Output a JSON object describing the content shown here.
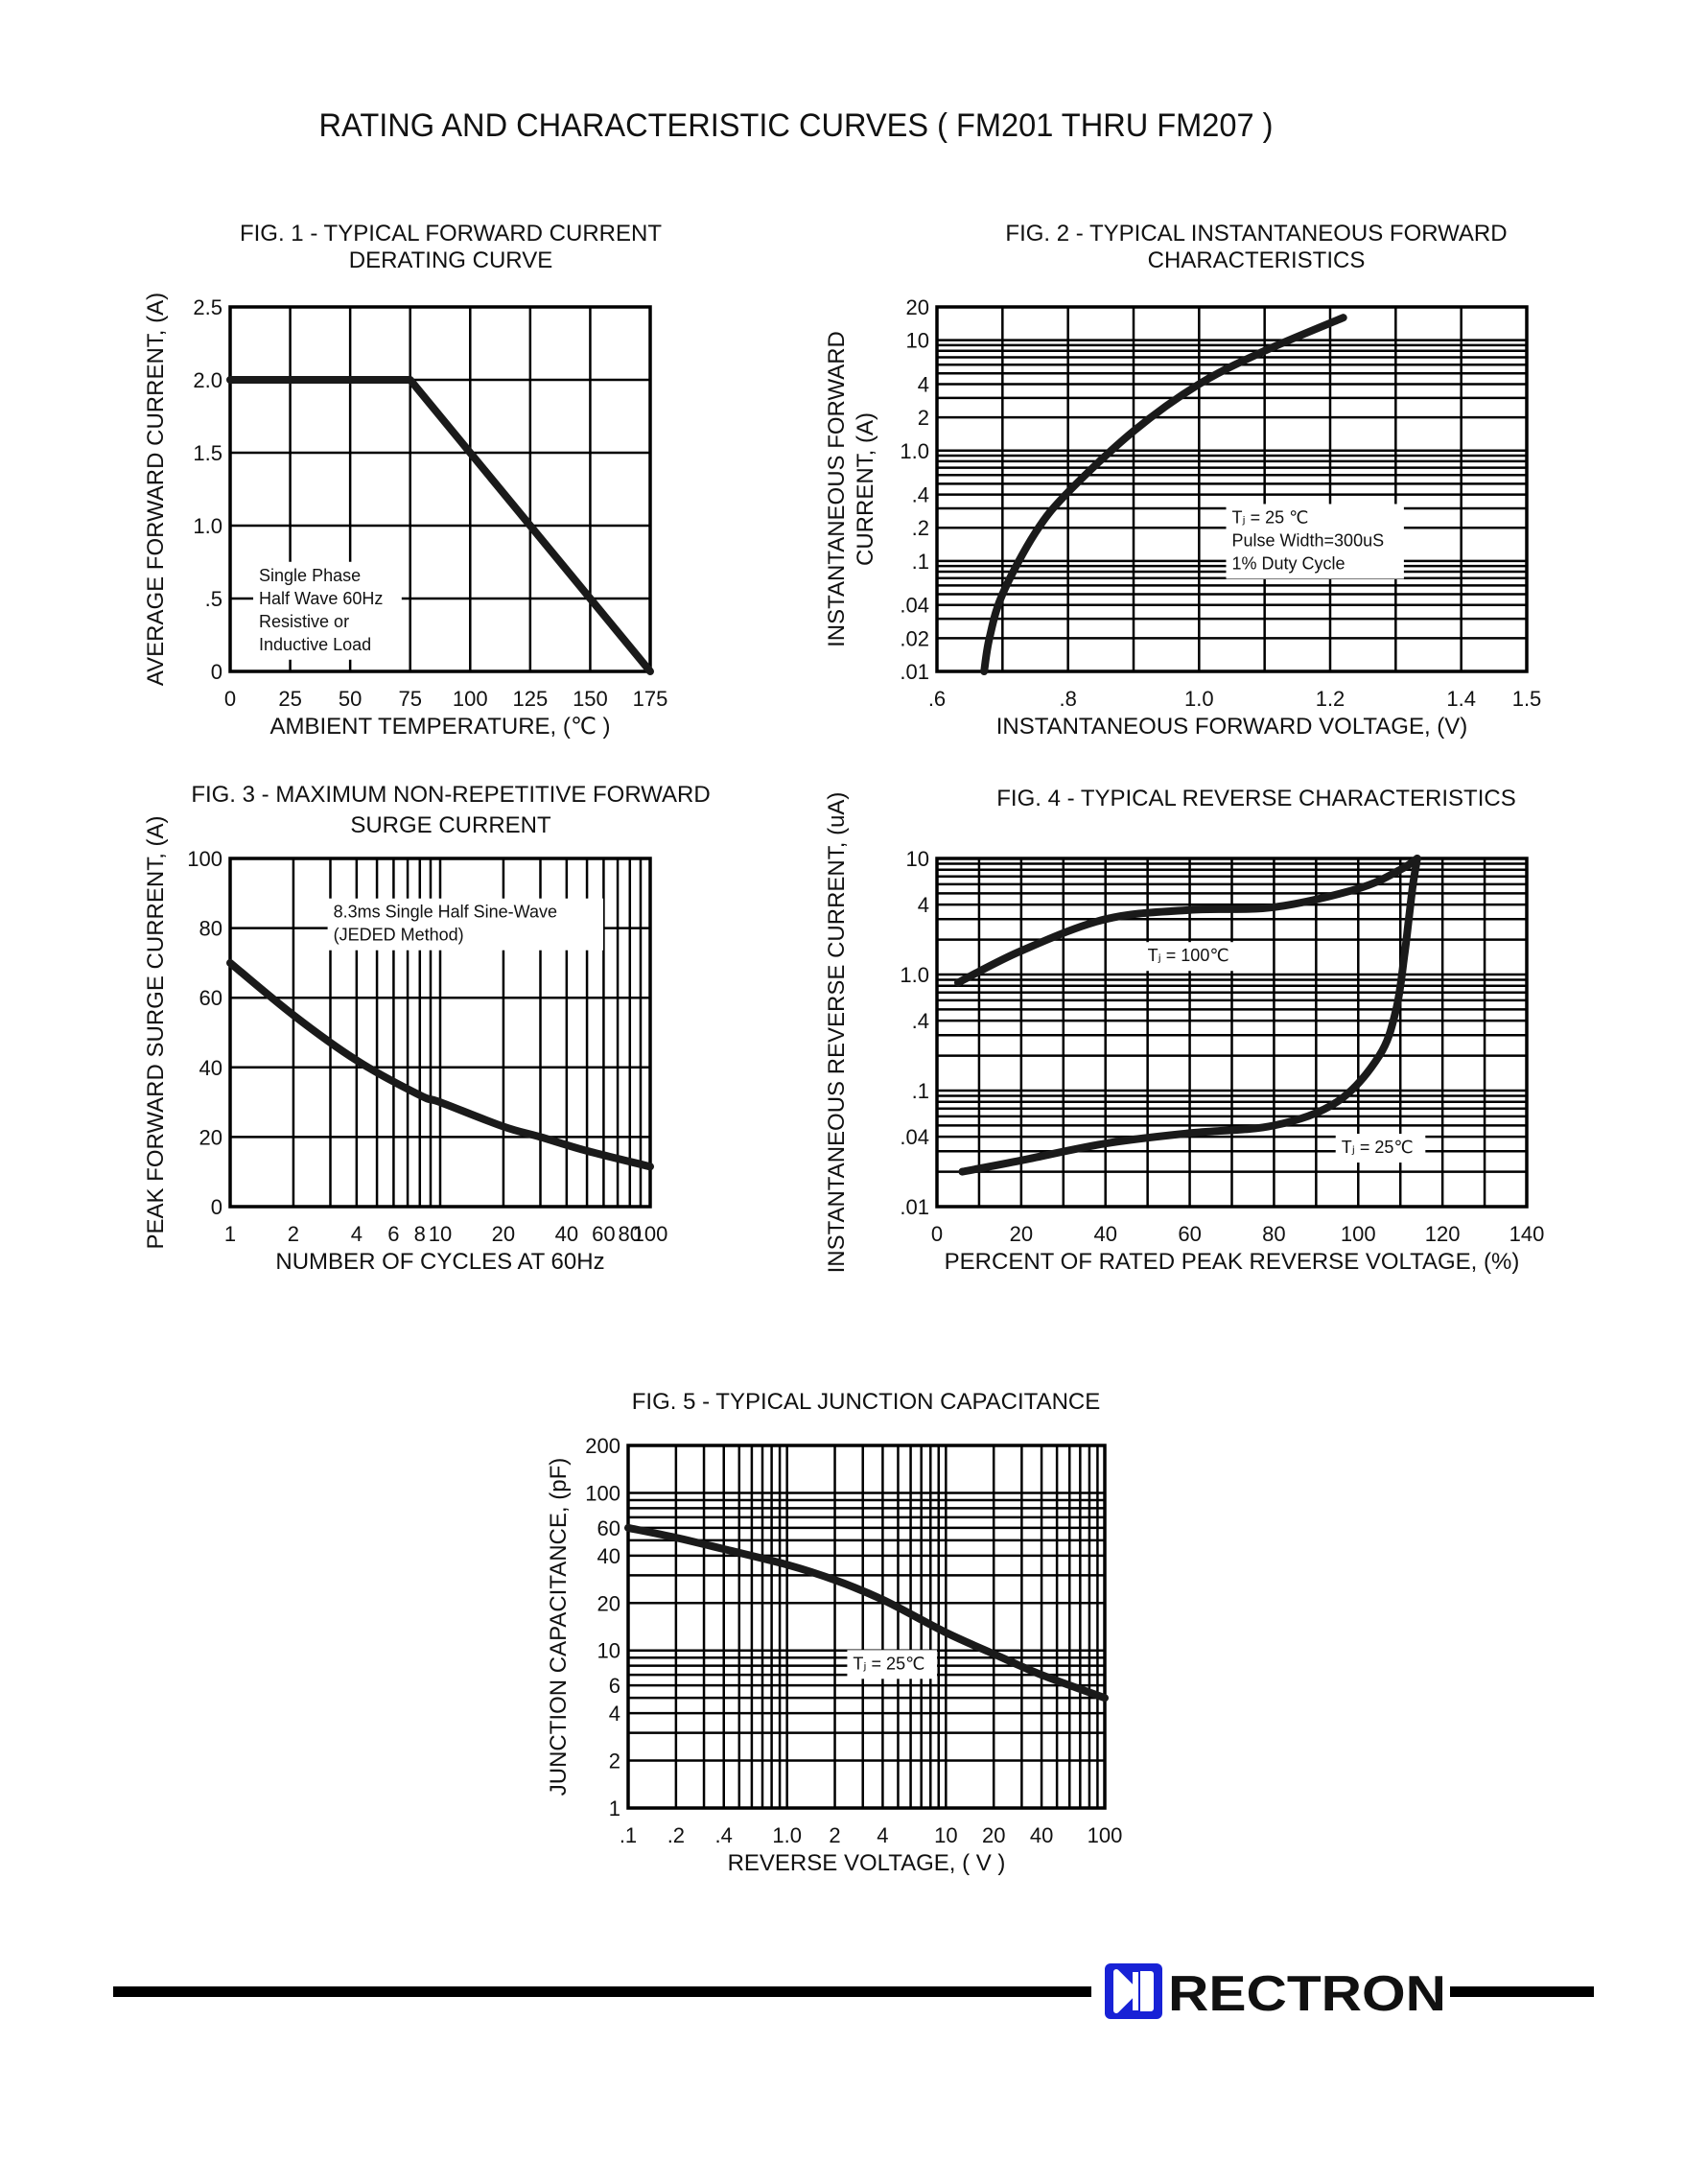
{
  "page_title": "RATING AND CHARACTERISTIC CURVES ( FM201 THRU FM207 )",
  "brand": {
    "name": "RECTRON",
    "color": "#1822d6"
  },
  "chart_data": [
    {
      "id": "fig1",
      "type": "line",
      "title_lines": [
        "FIG. 1 - TYPICAL FORWARD CURRENT",
        "DERATING CURVE"
      ],
      "xlabel": "AMBIENT TEMPERATURE, (℃ )",
      "ylabel": "AVERAGE FORWARD  CURRENT, (A)",
      "xscale": "linear",
      "yscale": "linear",
      "xlim": [
        0,
        175
      ],
      "ylim": [
        0,
        2.5
      ],
      "x_ticks": [
        {
          "v": 0,
          "label": "0"
        },
        {
          "v": 25,
          "label": "25"
        },
        {
          "v": 50,
          "label": "50"
        },
        {
          "v": 75,
          "label": "75"
        },
        {
          "v": 100,
          "label": "100"
        },
        {
          "v": 125,
          "label": "125"
        },
        {
          "v": 150,
          "label": "150"
        },
        {
          "v": 175,
          "label": "175"
        }
      ],
      "y_ticks": [
        {
          "v": 0,
          "label": "0"
        },
        {
          "v": 0.5,
          "label": ".5"
        },
        {
          "v": 1.0,
          "label": "1.0"
        },
        {
          "v": 1.5,
          "label": "1.5"
        },
        {
          "v": 2.0,
          "label": "2.0"
        },
        {
          "v": 2.5,
          "label": "2.5"
        }
      ],
      "grid_x": [
        25,
        50,
        75,
        100,
        125,
        150
      ],
      "grid_y": [
        0.5,
        1.0,
        1.5,
        2.0
      ],
      "series": [
        {
          "x": [
            0,
            75,
            175
          ],
          "y": [
            2.0,
            2.0,
            0
          ]
        }
      ],
      "annotations": [
        {
          "lines": [
            "Single Phase",
            "Half Wave 60Hz",
            "Resistive or",
            "Inductive Load"
          ],
          "x": 12,
          "y": 0.62
        }
      ]
    },
    {
      "id": "fig2",
      "type": "line",
      "title_lines": [
        "FIG. 2 - TYPICAL INSTANTANEOUS FORWARD",
        "CHARACTERISTICS"
      ],
      "xlabel": "INSTANTANEOUS FORWARD VOLTAGE, (V)",
      "ylabel_lines": [
        "INSTANTANEOUS FORWARD",
        "CURRENT, (A)"
      ],
      "xscale": "linear",
      "yscale": "log",
      "xlim": [
        0.6,
        1.5
      ],
      "ylim": [
        0.01,
        20
      ],
      "x_ticks": [
        {
          "v": 0.6,
          "label": ".6"
        },
        {
          "v": 0.8,
          "label": ".8"
        },
        {
          "v": 1.0,
          "label": "1.0"
        },
        {
          "v": 1.2,
          "label": "1.2"
        },
        {
          "v": 1.4,
          "label": "1.4"
        },
        {
          "v": 1.5,
          "label": "1.5"
        }
      ],
      "y_ticks": [
        {
          "v": 0.01,
          "label": ".01"
        },
        {
          "v": 0.02,
          "label": ".02"
        },
        {
          "v": 0.04,
          "label": ".04"
        },
        {
          "v": 0.1,
          "label": ".1"
        },
        {
          "v": 0.2,
          "label": ".2"
        },
        {
          "v": 0.4,
          "label": ".4"
        },
        {
          "v": 1.0,
          "label": "1.0"
        },
        {
          "v": 2,
          "label": "2"
        },
        {
          "v": 4,
          "label": "4"
        },
        {
          "v": 10,
          "label": "10"
        },
        {
          "v": 20,
          "label": "20"
        }
      ],
      "grid_x": [
        0.7,
        0.8,
        0.9,
        1.0,
        1.1,
        1.2,
        1.3,
        1.4
      ],
      "grid_y": [
        0.02,
        0.03,
        0.04,
        0.05,
        0.06,
        0.07,
        0.08,
        0.09,
        0.1,
        0.2,
        0.3,
        0.4,
        0.5,
        0.6,
        0.7,
        0.8,
        0.9,
        1,
        2,
        3,
        4,
        5,
        6,
        7,
        8,
        9,
        10
      ],
      "series": [
        {
          "x": [
            0.672,
            0.68,
            0.7,
            0.75,
            0.8,
            0.9,
            1.0,
            1.1,
            1.22
          ],
          "y": [
            0.01,
            0.02,
            0.05,
            0.18,
            0.42,
            1.5,
            4.0,
            8.0,
            16
          ]
        }
      ],
      "annotations": [
        {
          "lines": [
            "Tⱼ = 25 ℃",
            "Pulse Width=300uS",
            "1% Duty Cycle"
          ],
          "x": 1.05,
          "y": 0.22
        }
      ]
    },
    {
      "id": "fig3",
      "type": "line",
      "title_lines": [
        "FIG. 3 - MAXIMUM NON-REPETITIVE FORWARD",
        "SURGE CURRENT"
      ],
      "xlabel": "NUMBER OF CYCLES AT 60Hz",
      "ylabel": "PEAK FORWARD SURGE CURRENT, (A)",
      "xscale": "log",
      "yscale": "linear",
      "xlim": [
        1,
        100
      ],
      "ylim": [
        0,
        100
      ],
      "x_ticks": [
        {
          "v": 1,
          "label": "1"
        },
        {
          "v": 2,
          "label": "2"
        },
        {
          "v": 4,
          "label": "4"
        },
        {
          "v": 6,
          "label": "6"
        },
        {
          "v": 8,
          "label": "8"
        },
        {
          "v": 10,
          "label": "10"
        },
        {
          "v": 20,
          "label": "20"
        },
        {
          "v": 40,
          "label": "40"
        },
        {
          "v": 60,
          "label": "60"
        },
        {
          "v": 80,
          "label": "80"
        },
        {
          "v": 100,
          "label": "100"
        }
      ],
      "y_ticks": [
        {
          "v": 0,
          "label": "0"
        },
        {
          "v": 20,
          "label": "20"
        },
        {
          "v": 40,
          "label": "40"
        },
        {
          "v": 60,
          "label": "60"
        },
        {
          "v": 80,
          "label": "80"
        },
        {
          "v": 100,
          "label": "100"
        }
      ],
      "grid_x": [
        2,
        3,
        4,
        5,
        6,
        7,
        8,
        9,
        10,
        20,
        30,
        40,
        50,
        60,
        70,
        80,
        90
      ],
      "grid_y": [
        20,
        40,
        60,
        80
      ],
      "series": [
        {
          "x": [
            1,
            2,
            4,
            8,
            10,
            20,
            30,
            50,
            100
          ],
          "y": [
            70,
            55,
            42,
            32,
            30,
            23,
            20,
            16,
            11.5
          ]
        }
      ],
      "annotations": [
        {
          "lines": [
            "8.3ms Single Half Sine-Wave",
            "(JEDED Method)"
          ],
          "x": 3.1,
          "y": 83
        }
      ]
    },
    {
      "id": "fig4",
      "type": "line",
      "title_lines": [
        "FIG. 4 - TYPICAL REVERSE CHARACTERISTICS"
      ],
      "xlabel": "PERCENT OF RATED PEAK REVERSE VOLTAGE, (%)",
      "ylabel": "INSTANTANEOUS REVERSE CURRENT, (uA)",
      "xscale": "linear",
      "yscale": "log",
      "xlim": [
        0,
        140
      ],
      "ylim": [
        0.01,
        10
      ],
      "x_ticks": [
        {
          "v": 0,
          "label": "0"
        },
        {
          "v": 20,
          "label": "20"
        },
        {
          "v": 40,
          "label": "40"
        },
        {
          "v": 60,
          "label": "60"
        },
        {
          "v": 80,
          "label": "80"
        },
        {
          "v": 100,
          "label": "100"
        },
        {
          "v": 120,
          "label": "120"
        },
        {
          "v": 140,
          "label": "140"
        }
      ],
      "y_ticks": [
        {
          "v": 0.01,
          "label": ".01"
        },
        {
          "v": 0.04,
          "label": ".04"
        },
        {
          "v": 0.1,
          "label": ".1"
        },
        {
          "v": 0.4,
          "label": ".4"
        },
        {
          "v": 1.0,
          "label": "1.0"
        },
        {
          "v": 4,
          "label": "4"
        },
        {
          "v": 10,
          "label": "10"
        }
      ],
      "grid_x": [
        10,
        20,
        30,
        40,
        50,
        60,
        70,
        80,
        90,
        100,
        110,
        120,
        130
      ],
      "grid_y": [
        0.02,
        0.03,
        0.04,
        0.05,
        0.06,
        0.07,
        0.08,
        0.09,
        0.1,
        0.2,
        0.3,
        0.4,
        0.5,
        0.6,
        0.7,
        0.8,
        0.9,
        1,
        2,
        3,
        4,
        5,
        6,
        7,
        8,
        9
      ],
      "series": [
        {
          "x": [
            5,
            20,
            40,
            60,
            80,
            100,
            110,
            114
          ],
          "y": [
            0.85,
            1.6,
            3.0,
            3.6,
            3.8,
            5.5,
            8.0,
            10
          ]
        },
        {
          "x": [
            6,
            20,
            40,
            60,
            80,
            95,
            105,
            109,
            111,
            112,
            113,
            114
          ],
          "y": [
            0.02,
            0.025,
            0.035,
            0.043,
            0.05,
            0.08,
            0.2,
            0.5,
            1.5,
            3.0,
            6.0,
            10
          ]
        }
      ],
      "annotations": [
        {
          "lines": [
            "Tⱼ = 100℃"
          ],
          "x": 50,
          "y": 1.3
        },
        {
          "lines": [
            "Tⱼ = 25℃"
          ],
          "x": 96,
          "y": 0.029
        }
      ]
    },
    {
      "id": "fig5",
      "type": "line",
      "title_lines": [
        "FIG. 5 - TYPICAL JUNCTION CAPACITANCE"
      ],
      "xlabel": "REVERSE VOLTAGE, ( V )",
      "ylabel": "JUNCTION CAPACITANCE, (pF)",
      "xscale": "log",
      "yscale": "log",
      "xlim": [
        0.1,
        100
      ],
      "ylim": [
        1,
        200
      ],
      "x_ticks": [
        {
          "v": 0.1,
          "label": ".1"
        },
        {
          "v": 0.2,
          "label": ".2"
        },
        {
          "v": 0.4,
          "label": ".4"
        },
        {
          "v": 1.0,
          "label": "1.0"
        },
        {
          "v": 2,
          "label": "2"
        },
        {
          "v": 4,
          "label": "4"
        },
        {
          "v": 10,
          "label": "10"
        },
        {
          "v": 20,
          "label": "20"
        },
        {
          "v": 40,
          "label": "40"
        },
        {
          "v": 100,
          "label": "100"
        }
      ],
      "y_ticks": [
        {
          "v": 1,
          "label": "1"
        },
        {
          "v": 2,
          "label": "2"
        },
        {
          "v": 4,
          "label": "4"
        },
        {
          "v": 6,
          "label": "6"
        },
        {
          "v": 10,
          "label": "10"
        },
        {
          "v": 20,
          "label": "20"
        },
        {
          "v": 40,
          "label": "40"
        },
        {
          "v": 60,
          "label": "60"
        },
        {
          "v": 100,
          "label": "100"
        },
        {
          "v": 200,
          "label": "200"
        }
      ],
      "grid_x": [
        0.2,
        0.3,
        0.4,
        0.5,
        0.6,
        0.7,
        0.8,
        0.9,
        1,
        2,
        3,
        4,
        5,
        6,
        7,
        8,
        9,
        10,
        20,
        30,
        40,
        50,
        60,
        70,
        80,
        90
      ],
      "grid_y": [
        2,
        3,
        4,
        5,
        6,
        7,
        8,
        9,
        10,
        20,
        30,
        40,
        50,
        60,
        70,
        80,
        90,
        100
      ],
      "series": [
        {
          "x": [
            0.1,
            0.2,
            0.4,
            1.0,
            2,
            4,
            10,
            20,
            40,
            100
          ],
          "y": [
            60,
            52,
            44,
            35,
            28,
            21,
            13,
            9.5,
            7,
            5
          ]
        }
      ],
      "annotations": [
        {
          "lines": [
            "Tⱼ = 25℃"
          ],
          "x": 2.6,
          "y": 7.6
        }
      ]
    }
  ]
}
